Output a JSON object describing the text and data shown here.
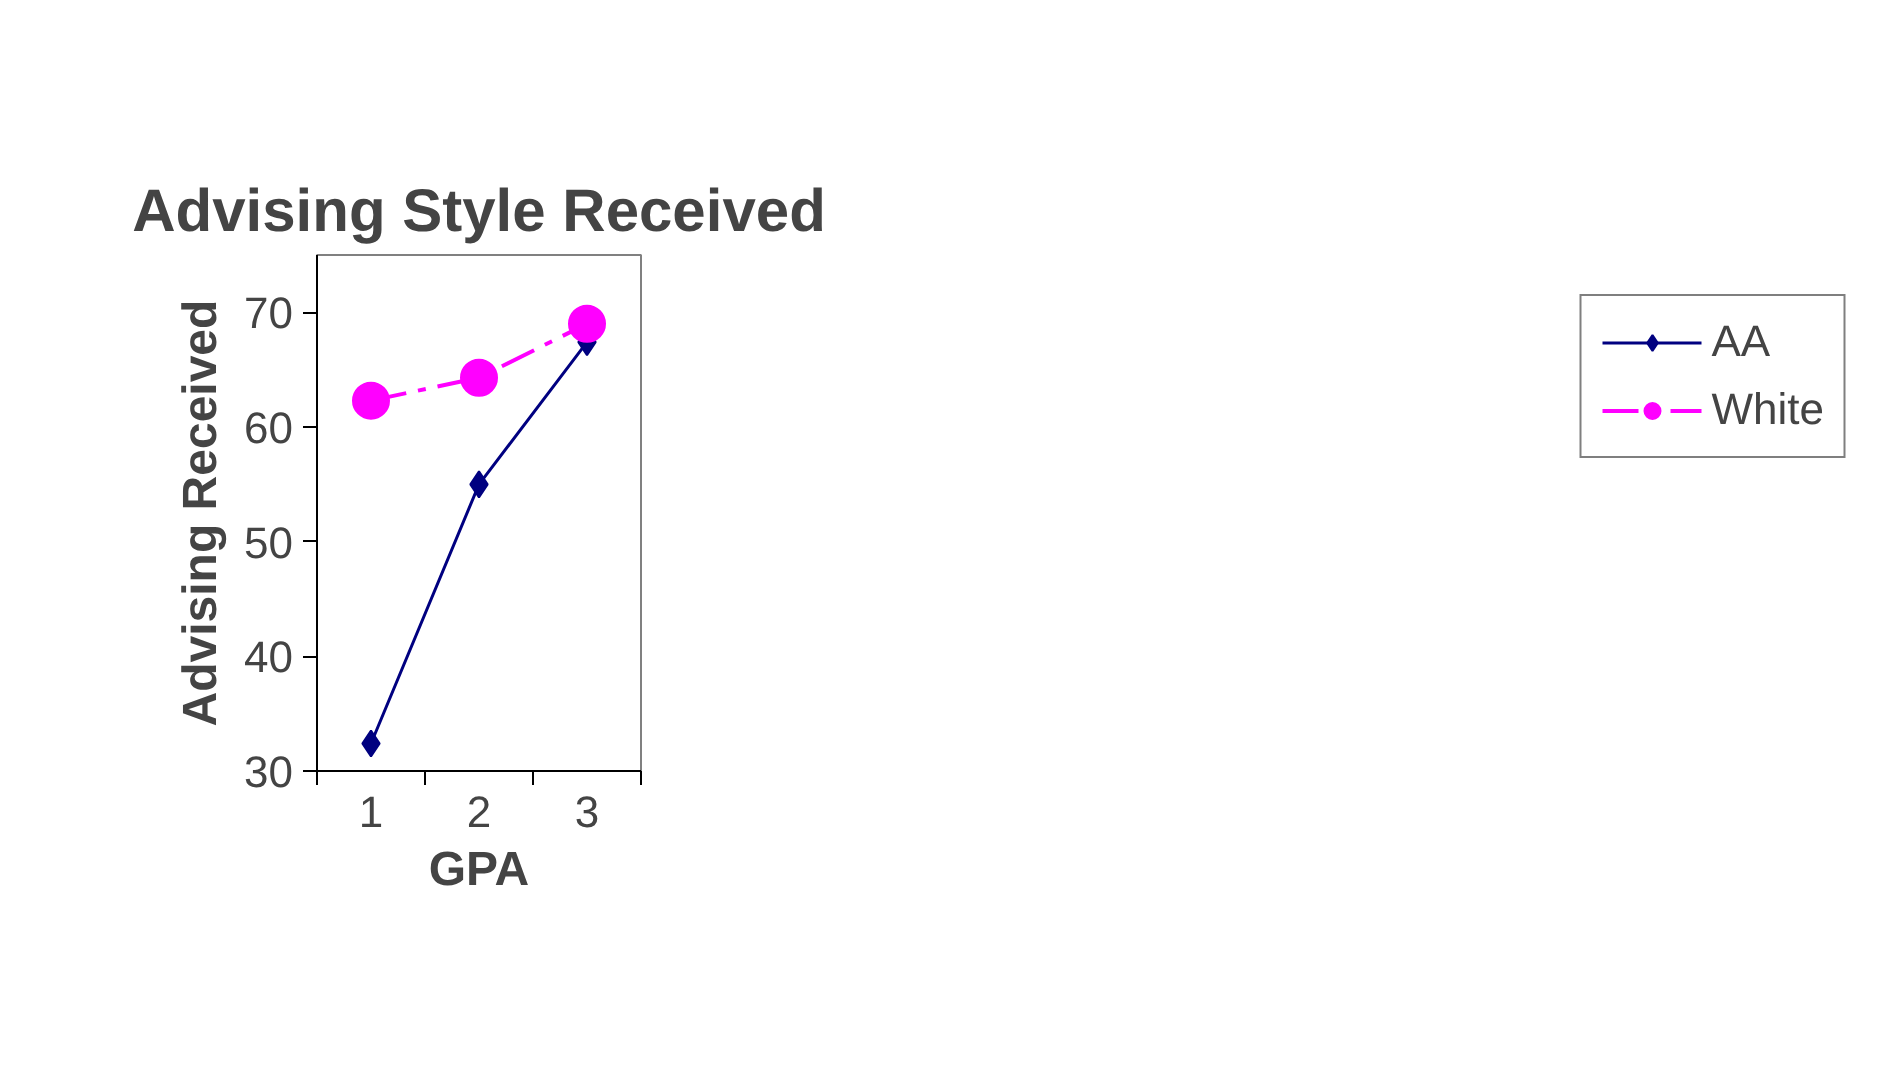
{
  "chart_data": {
    "type": "line",
    "title": "Advising Style Received",
    "xlabel": "GPA",
    "ylabel": "Advising Received",
    "categories": [
      "1",
      "2",
      "3"
    ],
    "series": [
      {
        "name": "AA",
        "color": "#000080",
        "values": [
          32.4,
          55,
          67.4
        ],
        "marker": "diamond",
        "line_style": "solid"
      },
      {
        "name": "White",
        "color": "#ff00ff",
        "values": [
          62.3,
          64.3,
          69
        ],
        "marker": "circle",
        "line_style": "dashed"
      }
    ],
    "ylim": [
      30,
      75
    ],
    "yticks": [
      30,
      40,
      50,
      60,
      70
    ],
    "grid": false,
    "legend": "right"
  }
}
